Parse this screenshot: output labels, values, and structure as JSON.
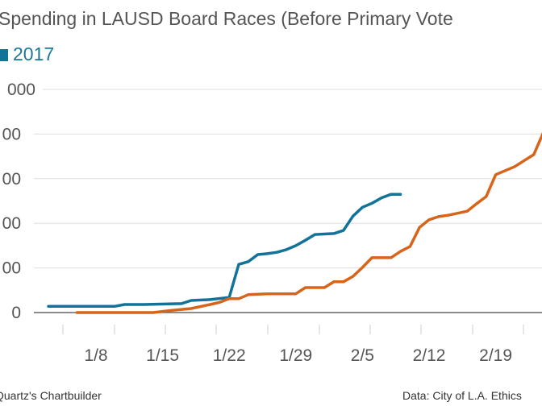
{
  "chart_data": {
    "type": "line",
    "title": "Spending in LAUSD Board Races (Before Primary Vote",
    "y_tick_labels": [
      "0",
      "00",
      "00",
      "00",
      "00",
      "000"
    ],
    "ylim": [
      0,
      5
    ],
    "x_tick_labels": [
      "1/8",
      "1/15",
      "1/22",
      "1/29",
      "2/5",
      "2/12",
      "2/19"
    ],
    "grid": true,
    "legend": {
      "placement": "top-left"
    },
    "series": [
      {
        "name": "2017",
        "color": "#12739a",
        "x": [
          "1/3",
          "1/10",
          "1/11",
          "1/13",
          "1/17",
          "1/18",
          "1/20",
          "1/22",
          "1/23",
          "1/24",
          "1/25",
          "1/26",
          "1/27",
          "1/28",
          "1/29",
          "1/30",
          "1/31",
          "2/2",
          "2/3",
          "2/4",
          "2/5",
          "2/6",
          "2/7",
          "2/8",
          "2/9"
        ],
        "y": [
          0.14,
          0.14,
          0.18,
          0.18,
          0.2,
          0.27,
          0.29,
          0.34,
          1.08,
          1.14,
          1.3,
          1.32,
          1.35,
          1.41,
          1.5,
          1.62,
          1.75,
          1.77,
          1.84,
          2.16,
          2.36,
          2.45,
          2.57,
          2.65,
          2.65
        ]
      },
      {
        "color": "#d8641b",
        "x": [
          "1/6",
          "1/14",
          "1/16",
          "1/18",
          "1/20",
          "1/21",
          "1/22",
          "1/23",
          "1/24",
          "1/26",
          "1/29",
          "1/30",
          "2/1",
          "2/2",
          "2/3",
          "2/4",
          "2/5",
          "2/6",
          "2/8",
          "2/9",
          "2/10",
          "2/11",
          "2/12",
          "2/13",
          "2/14",
          "2/16",
          "2/17",
          "2/18",
          "2/19",
          "2/20",
          "2/21",
          "2/23",
          "2/24"
        ],
        "y": [
          0,
          0,
          0.05,
          0.09,
          0.18,
          0.23,
          0.31,
          0.31,
          0.4,
          0.42,
          0.42,
          0.56,
          0.56,
          0.69,
          0.69,
          0.81,
          1.01,
          1.23,
          1.23,
          1.37,
          1.48,
          1.91,
          2.08,
          2.15,
          2.18,
          2.27,
          2.44,
          2.6,
          3.09,
          3.18,
          3.27,
          3.54,
          4.03
        ]
      }
    ]
  },
  "footer": {
    "credit": "Quartz's Chartbuilder",
    "source": "Data: City of L.A. Ethics"
  }
}
